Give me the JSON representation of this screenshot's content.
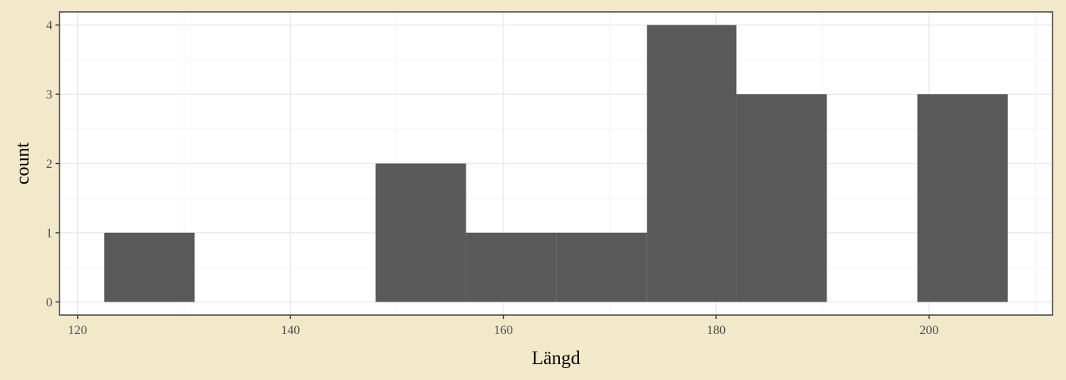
{
  "chart_data": {
    "type": "histogram",
    "title": "",
    "xlabel": "Längd",
    "ylabel": "count",
    "bins": [
      {
        "x0": 122.5,
        "x1": 131.0,
        "count": 1
      },
      {
        "x0": 131.0,
        "x1": 139.5,
        "count": 0
      },
      {
        "x0": 139.5,
        "x1": 148.0,
        "count": 0
      },
      {
        "x0": 148.0,
        "x1": 156.5,
        "count": 2
      },
      {
        "x0": 156.5,
        "x1": 165.0,
        "count": 1
      },
      {
        "x0": 165.0,
        "x1": 173.5,
        "count": 1
      },
      {
        "x0": 173.5,
        "x1": 181.9,
        "count": 4
      },
      {
        "x0": 181.9,
        "x1": 190.4,
        "count": 3
      },
      {
        "x0": 190.4,
        "x1": 198.9,
        "count": 0
      },
      {
        "x0": 198.9,
        "x1": 207.4,
        "count": 3
      }
    ],
    "xlim": [
      118.3,
      211.6
    ],
    "ylim": [
      -0.19,
      4.19
    ],
    "x_ticks": [
      120,
      140,
      160,
      180,
      200
    ],
    "y_ticks": [
      0,
      1,
      2,
      3,
      4
    ],
    "x_tick_labels": [
      "120",
      "140",
      "160",
      "180",
      "200"
    ],
    "y_tick_labels": [
      "0",
      "1",
      "2",
      "3",
      "4"
    ],
    "grid": true,
    "colors": {
      "background": "#f2e9cb",
      "panel": "#ffffff",
      "bar": "#595959",
      "grid_major": "#ebebeb",
      "grid_minor": "#f5f5f5",
      "border": "#333333",
      "tick_text": "#4d4d4d"
    }
  }
}
